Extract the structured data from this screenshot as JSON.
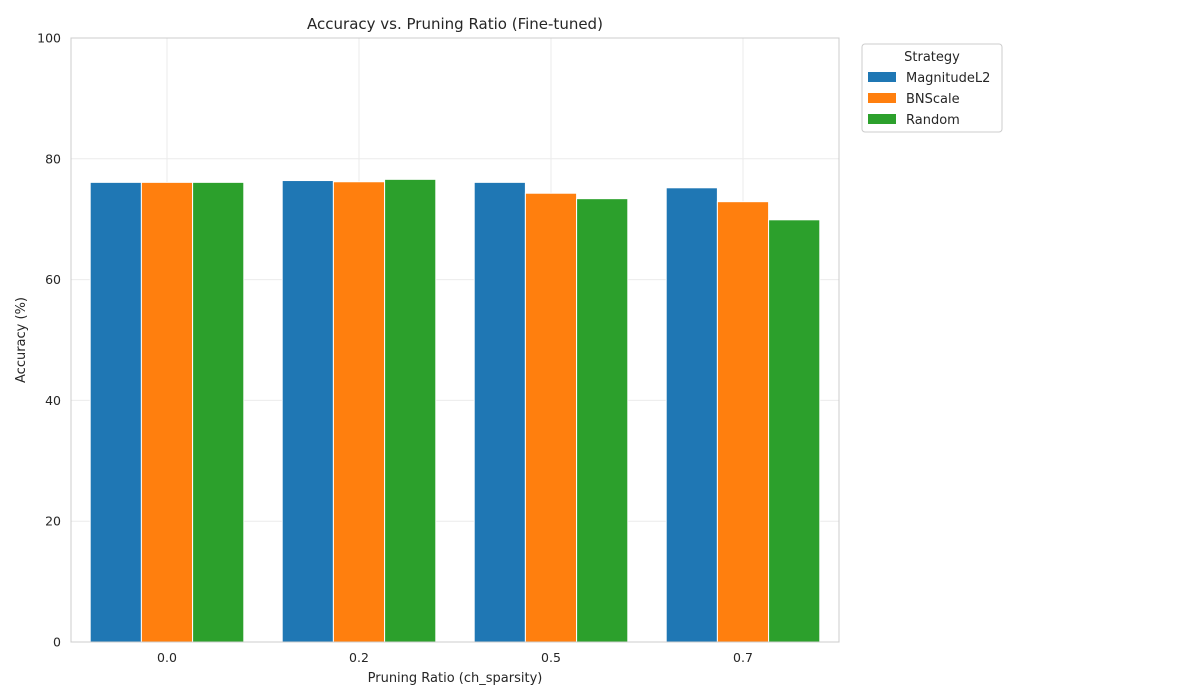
{
  "chart_data": {
    "type": "bar",
    "title": "Accuracy vs. Pruning Ratio (Fine-tuned)",
    "xlabel": "Pruning Ratio (ch_sparsity)",
    "ylabel": "Accuracy (%)",
    "categories": [
      "0.0",
      "0.2",
      "0.5",
      "0.7"
    ],
    "ylim": [
      0,
      100
    ],
    "yticks": [
      "0",
      "20",
      "40",
      "60",
      "80",
      "100"
    ],
    "grid": true,
    "legend": {
      "title": "Strategy",
      "placement": "outside-top-right"
    },
    "series": [
      {
        "name": "MagnitudeL2",
        "color": "#1f77b4",
        "values": [
          76.1,
          76.4,
          76.1,
          75.2
        ]
      },
      {
        "name": "BNScale",
        "color": "#ff7f0e",
        "values": [
          76.1,
          76.2,
          74.3,
          72.9
        ]
      },
      {
        "name": "Random",
        "color": "#2ca02c",
        "values": [
          76.1,
          76.6,
          73.4,
          69.9
        ]
      }
    ]
  }
}
